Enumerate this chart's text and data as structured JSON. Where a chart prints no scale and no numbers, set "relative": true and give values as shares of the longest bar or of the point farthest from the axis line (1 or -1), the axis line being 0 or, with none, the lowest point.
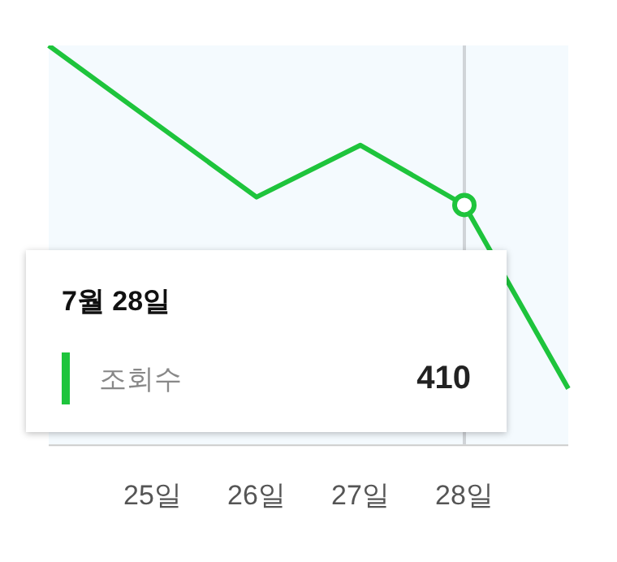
{
  "chart_data": {
    "type": "line",
    "relative": true,
    "categories": [
      null,
      "25일",
      "26일",
      "27일",
      "28일",
      null
    ],
    "series": [
      {
        "name": "조회수",
        "color": "#1ec43c",
        "values": [
          1,
          0.81,
          0.62,
          0.75,
          0.6,
          0.14
        ]
      }
    ],
    "annotations": [
      "7월 28일",
      "410"
    ],
    "ref_lines": [
      {
        "axis": "x",
        "value": "28일",
        "color": "#d0d4d8"
      }
    ],
    "grid": false,
    "legend": "bottom"
  }
}
